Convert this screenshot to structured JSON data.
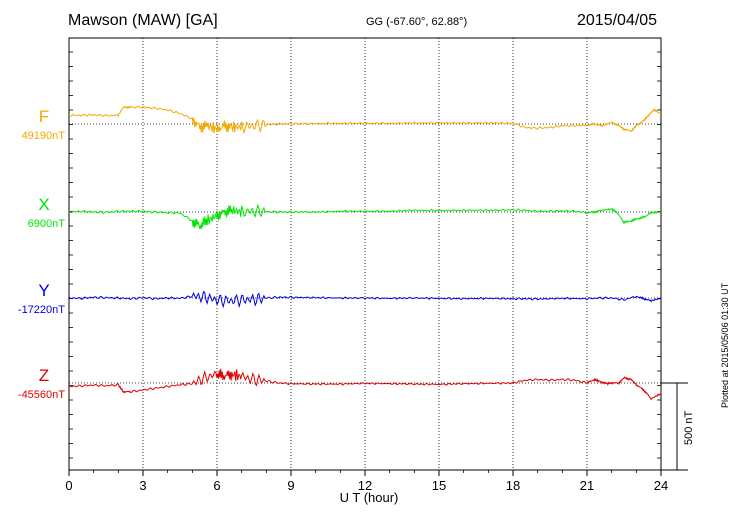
{
  "header": {
    "station": "Mawson (MAW)  [GA]",
    "coords": "GG (-67.60°,  62.88°)",
    "date": "2015/04/05"
  },
  "footer": {
    "plotted": "Plotted at 2015/05/06 01:30 UT"
  },
  "chart_data": {
    "type": "line",
    "title": "Mawson (MAW)  [GA]",
    "xlabel": "U T (hour)",
    "ylabel": "",
    "xlim": [
      0,
      24
    ],
    "x_ticks": [
      0,
      3,
      6,
      9,
      12,
      15,
      18,
      21,
      24
    ],
    "grid": true,
    "scale_bar": "500 nT",
    "series": [
      {
        "name": "F",
        "baseline": "49190nT",
        "color": "#f5a800",
        "x": [
          0,
          0.5,
          1,
          1.5,
          2,
          2.2,
          2.5,
          3,
          3.5,
          4,
          4.5,
          5,
          5.3,
          5.6,
          6,
          6.3,
          6.6,
          7,
          7.5,
          8,
          8.5,
          9,
          10,
          11,
          12,
          13,
          14,
          15,
          16,
          17,
          17.5,
          18,
          18.5,
          19,
          19.5,
          20,
          20.5,
          21,
          21.3,
          21.6,
          22,
          22.3,
          22.5,
          22.8,
          23,
          23.3,
          23.5,
          23.7,
          24
        ],
        "y": [
          25,
          25,
          26,
          24,
          25,
          48,
          48,
          48,
          45,
          40,
          30,
          15,
          -10,
          -5,
          -15,
          -5,
          -10,
          -8,
          -5,
          -2,
          0,
          1,
          1,
          2,
          2,
          2,
          3,
          3,
          3,
          3,
          3,
          2,
          -10,
          -12,
          -10,
          -5,
          -5,
          -3,
          0,
          -5,
          5,
          -5,
          -15,
          -20,
          -5,
          10,
          25,
          40,
          30
        ]
      },
      {
        "name": "X",
        "baseline": "6900nT",
        "color": "#00e600",
        "x": [
          0,
          0.5,
          1,
          1.5,
          2,
          2.5,
          3,
          3.5,
          4,
          4.5,
          5,
          5.3,
          5.6,
          6,
          6.3,
          6.6,
          7,
          7.5,
          8,
          8.5,
          9,
          10,
          11,
          12,
          13,
          14,
          15,
          16,
          17,
          18,
          18.5,
          19,
          19.5,
          20,
          20.5,
          21,
          21.3,
          21.6,
          22,
          22.2,
          22.5,
          22.8,
          23,
          23.3,
          23.6,
          24
        ],
        "y": [
          0,
          2,
          0,
          -1,
          2,
          2,
          2,
          0,
          -2,
          -3,
          -25,
          -40,
          -25,
          -10,
          0,
          5,
          0,
          2,
          1,
          0,
          0,
          0,
          2,
          2,
          2,
          5,
          4,
          5,
          5,
          6,
          5,
          2,
          2,
          3,
          2,
          -2,
          0,
          5,
          8,
          0,
          -30,
          -25,
          -20,
          -15,
          -2,
          0
        ]
      },
      {
        "name": "Y",
        "baseline": "-17220nT",
        "color": "#0000e0",
        "x": [
          0,
          0.5,
          1,
          1.5,
          2,
          2.5,
          3,
          3.5,
          4,
          4.5,
          5,
          5.5,
          6,
          6.5,
          7,
          7.5,
          8,
          8.5,
          9,
          10,
          11,
          12,
          13,
          14,
          15,
          16,
          17,
          18,
          18.5,
          19,
          20,
          21,
          21.5,
          22,
          22.5,
          23,
          23.3,
          23.6,
          24
        ],
        "y": [
          0,
          -1,
          2,
          1,
          0,
          -2,
          1,
          -2,
          0,
          -1,
          5,
          3,
          -6,
          -8,
          -5,
          -4,
          0,
          2,
          2,
          1,
          0,
          0,
          -1,
          0,
          -1,
          -2,
          -1,
          -2,
          -2,
          -3,
          -1,
          -2,
          0,
          0,
          -5,
          5,
          -2,
          -8,
          0
        ]
      },
      {
        "name": "Z",
        "baseline": "-45560nT",
        "color": "#e00000",
        "x": [
          0,
          0.5,
          1,
          1.5,
          2,
          2.2,
          2.5,
          3,
          3.5,
          4,
          4.5,
          5,
          5.5,
          6,
          6.3,
          6.6,
          7,
          7.5,
          8,
          8.5,
          9,
          10,
          11,
          12,
          13,
          14,
          15,
          16,
          17,
          18,
          18.5,
          19,
          19.5,
          20,
          20.5,
          21,
          21.3,
          21.5,
          21.8,
          22,
          22.3,
          22.5,
          22.8,
          23,
          23.3,
          23.6,
          24
        ],
        "y": [
          -10,
          -8,
          -6,
          -8,
          -5,
          -25,
          -25,
          -20,
          -15,
          -10,
          -5,
          -2,
          15,
          25,
          20,
          25,
          18,
          10,
          6,
          0,
          -2,
          -3,
          -3,
          -1,
          -2,
          -3,
          -4,
          -2,
          -1,
          0,
          8,
          10,
          8,
          10,
          8,
          0,
          10,
          5,
          -2,
          0,
          0,
          15,
          10,
          -5,
          -20,
          -45,
          -30
        ]
      }
    ]
  }
}
